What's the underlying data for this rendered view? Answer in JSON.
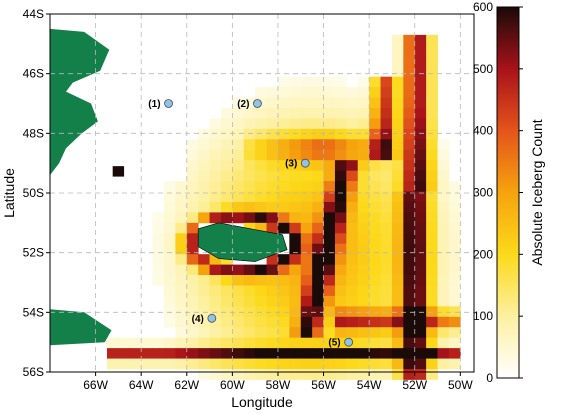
{
  "chart_data": {
    "type": "heatmap",
    "title": "",
    "xlabel": "Longitude",
    "ylabel": "Latitude",
    "colorbar_label": "Absolute Iceberg Count",
    "xlim": [
      -68,
      -49.4
    ],
    "ylim": [
      -56,
      -44
    ],
    "x_ticks": [
      {
        "value": -66,
        "label": "66W"
      },
      {
        "value": -64,
        "label": "64W"
      },
      {
        "value": -62,
        "label": "62W"
      },
      {
        "value": -60,
        "label": "60W"
      },
      {
        "value": -58,
        "label": "58W"
      },
      {
        "value": -56,
        "label": "56W"
      },
      {
        "value": -54,
        "label": "54W"
      },
      {
        "value": -52,
        "label": "52W"
      },
      {
        "value": -50,
        "label": "50W"
      }
    ],
    "y_ticks": [
      {
        "value": -44,
        "label": "44S"
      },
      {
        "value": -46,
        "label": "46S"
      },
      {
        "value": -48,
        "label": "48S"
      },
      {
        "value": -50,
        "label": "50S"
      },
      {
        "value": -52,
        "label": "52S"
      },
      {
        "value": -54,
        "label": "54S"
      },
      {
        "value": -56,
        "label": "56S"
      }
    ],
    "colorbar": {
      "min": 0,
      "max": 600,
      "ticks": [
        "0",
        "100",
        "200",
        "300",
        "400",
        "500",
        "600"
      ],
      "colors": [
        "#ffffff",
        "#fdf0a0",
        "#fcd91a",
        "#f6a30e",
        "#e4541b",
        "#a8121a",
        "#1a0a08"
      ]
    },
    "grid": true,
    "markers": [
      {
        "label": "(1)",
        "lon": -62.8,
        "lat": -47.0
      },
      {
        "label": "(2)",
        "lon": -58.9,
        "lat": -47.0
      },
      {
        "label": "(3)",
        "lon": -56.8,
        "lat": -49.0
      },
      {
        "label": "(4)",
        "lon": -60.9,
        "lat": -54.2
      },
      {
        "label": "(5)",
        "lon": -54.9,
        "lat": -55.0
      }
    ],
    "land_color": "#13804a",
    "marker_color": "#8fc3e8"
  }
}
